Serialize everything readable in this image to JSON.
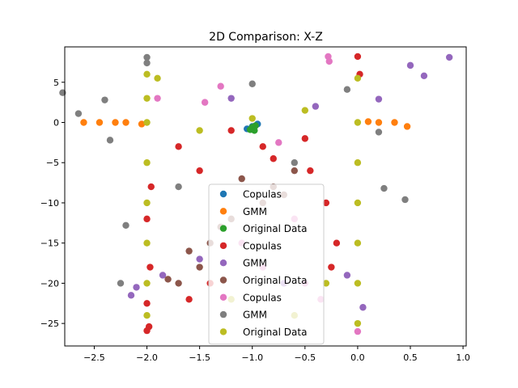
{
  "chart_data": {
    "type": "scatter",
    "title": "2D Comparison: X-Z",
    "xlabel": "",
    "ylabel": "",
    "xlim": [
      -2.78,
      1.03
    ],
    "ylim": [
      -27.8,
      9.4
    ],
    "xticks": [
      -2.5,
      -2.0,
      -1.5,
      -1.0,
      -0.5,
      0.0,
      0.5,
      1.0
    ],
    "xtick_labels": [
      "−2.5",
      "−2.0",
      "−1.5",
      "−1.0",
      "−0.5",
      "0.0",
      "0.5",
      "1.0"
    ],
    "yticks": [
      5,
      0,
      -5,
      -10,
      -15,
      -20,
      -25
    ],
    "ytick_labels": [
      "5",
      "0",
      "−5",
      "−10",
      "−15",
      "−20",
      "−25"
    ],
    "grid": false,
    "legend_position": "lower-center",
    "series": [
      {
        "name": "Copulas",
        "color": "#1f77b4",
        "points": [
          [
            -1.0,
            -0.5
          ],
          [
            -0.95,
            -0.2
          ],
          [
            -1.05,
            -0.8
          ]
        ]
      },
      {
        "name": "GMM",
        "color": "#ff7f0e",
        "points": [
          [
            -2.6,
            0.0
          ],
          [
            -2.45,
            0.0
          ],
          [
            -2.3,
            0.0
          ],
          [
            -2.2,
            0.0
          ],
          [
            -2.05,
            -0.2
          ],
          [
            0.2,
            0.0
          ],
          [
            0.35,
            0.0
          ],
          [
            0.47,
            -0.5
          ],
          [
            0.1,
            0.1
          ]
        ]
      },
      {
        "name": "Original Data",
        "color": "#2ca02c",
        "points": [
          [
            -1.0,
            -0.6
          ],
          [
            -0.97,
            -0.4
          ],
          [
            -1.02,
            -0.9
          ],
          [
            -0.98,
            -1.0
          ]
        ]
      },
      {
        "name": "Copulas",
        "color": "#d62728",
        "points": [
          [
            -2.0,
            -25.9
          ],
          [
            -1.98,
            -25.4
          ],
          [
            -2.0,
            -22.5
          ],
          [
            -1.97,
            -18.0
          ],
          [
            -2.0,
            -12.0
          ],
          [
            -1.96,
            -8.0
          ],
          [
            -0.2,
            -15.0
          ],
          [
            -0.25,
            -18.0
          ],
          [
            -0.45,
            -6.0
          ],
          [
            -0.5,
            -2.0
          ],
          [
            -1.2,
            -1.0
          ],
          [
            -0.9,
            -3.0
          ],
          [
            0.0,
            8.2
          ],
          [
            0.02,
            6.0
          ],
          [
            -0.8,
            -4.5
          ],
          [
            -1.5,
            -6.0
          ],
          [
            -1.7,
            -3.0
          ],
          [
            -0.3,
            -10.0
          ],
          [
            -1.6,
            -22.0
          ],
          [
            -1.4,
            -20.0
          ]
        ]
      },
      {
        "name": "GMM",
        "color": "#9467bd",
        "points": [
          [
            0.87,
            8.1
          ],
          [
            0.63,
            5.8
          ],
          [
            0.5,
            7.1
          ],
          [
            0.2,
            2.9
          ],
          [
            -2.1,
            -20.5
          ],
          [
            -2.15,
            -21.5
          ],
          [
            -1.85,
            -19.0
          ],
          [
            0.05,
            -23.0
          ],
          [
            -0.1,
            -19.0
          ],
          [
            -0.7,
            -20.0
          ],
          [
            -1.2,
            3.0
          ],
          [
            -0.4,
            2.0
          ],
          [
            -1.5,
            -17.0
          ]
        ]
      },
      {
        "name": "Original Data",
        "color": "#8c564b",
        "points": [
          [
            -1.6,
            -16.0
          ],
          [
            -1.5,
            -18.0
          ],
          [
            -1.4,
            -15.0
          ],
          [
            -1.3,
            -13.0
          ],
          [
            -1.8,
            -19.5
          ],
          [
            -1.7,
            -20.0
          ],
          [
            -0.8,
            -8.0
          ],
          [
            -0.7,
            -9.0
          ],
          [
            -0.6,
            -6.0
          ],
          [
            -1.2,
            -12.0
          ],
          [
            -1.1,
            -7.0
          ],
          [
            -0.9,
            -10.0
          ]
        ]
      },
      {
        "name": "Copulas",
        "color": "#e377c2",
        "points": [
          [
            -0.28,
            8.2
          ],
          [
            -0.27,
            7.6
          ],
          [
            0.0,
            -26.0
          ],
          [
            -0.5,
            -20.0
          ],
          [
            -0.9,
            -18.0
          ],
          [
            -1.3,
            4.5
          ],
          [
            -1.9,
            3.0
          ],
          [
            -0.35,
            -22.0
          ],
          [
            -1.1,
            -15.0
          ],
          [
            -0.6,
            -12.0
          ],
          [
            -1.45,
            2.5
          ],
          [
            -0.75,
            -2.5
          ]
        ]
      },
      {
        "name": "GMM",
        "color": "#7f7f7f",
        "points": [
          [
            -2.0,
            8.1
          ],
          [
            -2.0,
            7.4
          ],
          [
            -2.8,
            3.7
          ],
          [
            -2.65,
            1.1
          ],
          [
            -2.4,
            2.8
          ],
          [
            -2.35,
            -2.2
          ],
          [
            -2.2,
            -12.8
          ],
          [
            -2.25,
            -20.0
          ],
          [
            -0.1,
            4.1
          ],
          [
            0.45,
            -9.6
          ],
          [
            0.25,
            -8.2
          ],
          [
            0.2,
            -1.2
          ],
          [
            -1.0,
            4.8
          ],
          [
            -0.6,
            -5.0
          ],
          [
            -1.7,
            -8.0
          ]
        ]
      },
      {
        "name": "Original Data",
        "color": "#bcbd22",
        "points": [
          [
            -2.0,
            6.0
          ],
          [
            -2.0,
            3.0
          ],
          [
            -2.0,
            0.0
          ],
          [
            -2.0,
            -5.0
          ],
          [
            -2.0,
            -10.0
          ],
          [
            -2.0,
            -15.0
          ],
          [
            -2.0,
            -20.0
          ],
          [
            -2.0,
            -24.0
          ],
          [
            0.0,
            5.5
          ],
          [
            0.0,
            0.0
          ],
          [
            0.0,
            -5.0
          ],
          [
            0.0,
            -10.0
          ],
          [
            0.0,
            -15.0
          ],
          [
            0.0,
            -20.0
          ],
          [
            0.0,
            -25.0
          ],
          [
            -1.0,
            0.5
          ],
          [
            -0.5,
            1.5
          ],
          [
            -1.5,
            -1.0
          ],
          [
            -1.2,
            -22.0
          ],
          [
            -0.3,
            -20.0
          ],
          [
            -0.6,
            -24.0
          ],
          [
            -1.9,
            5.5
          ]
        ]
      }
    ]
  }
}
